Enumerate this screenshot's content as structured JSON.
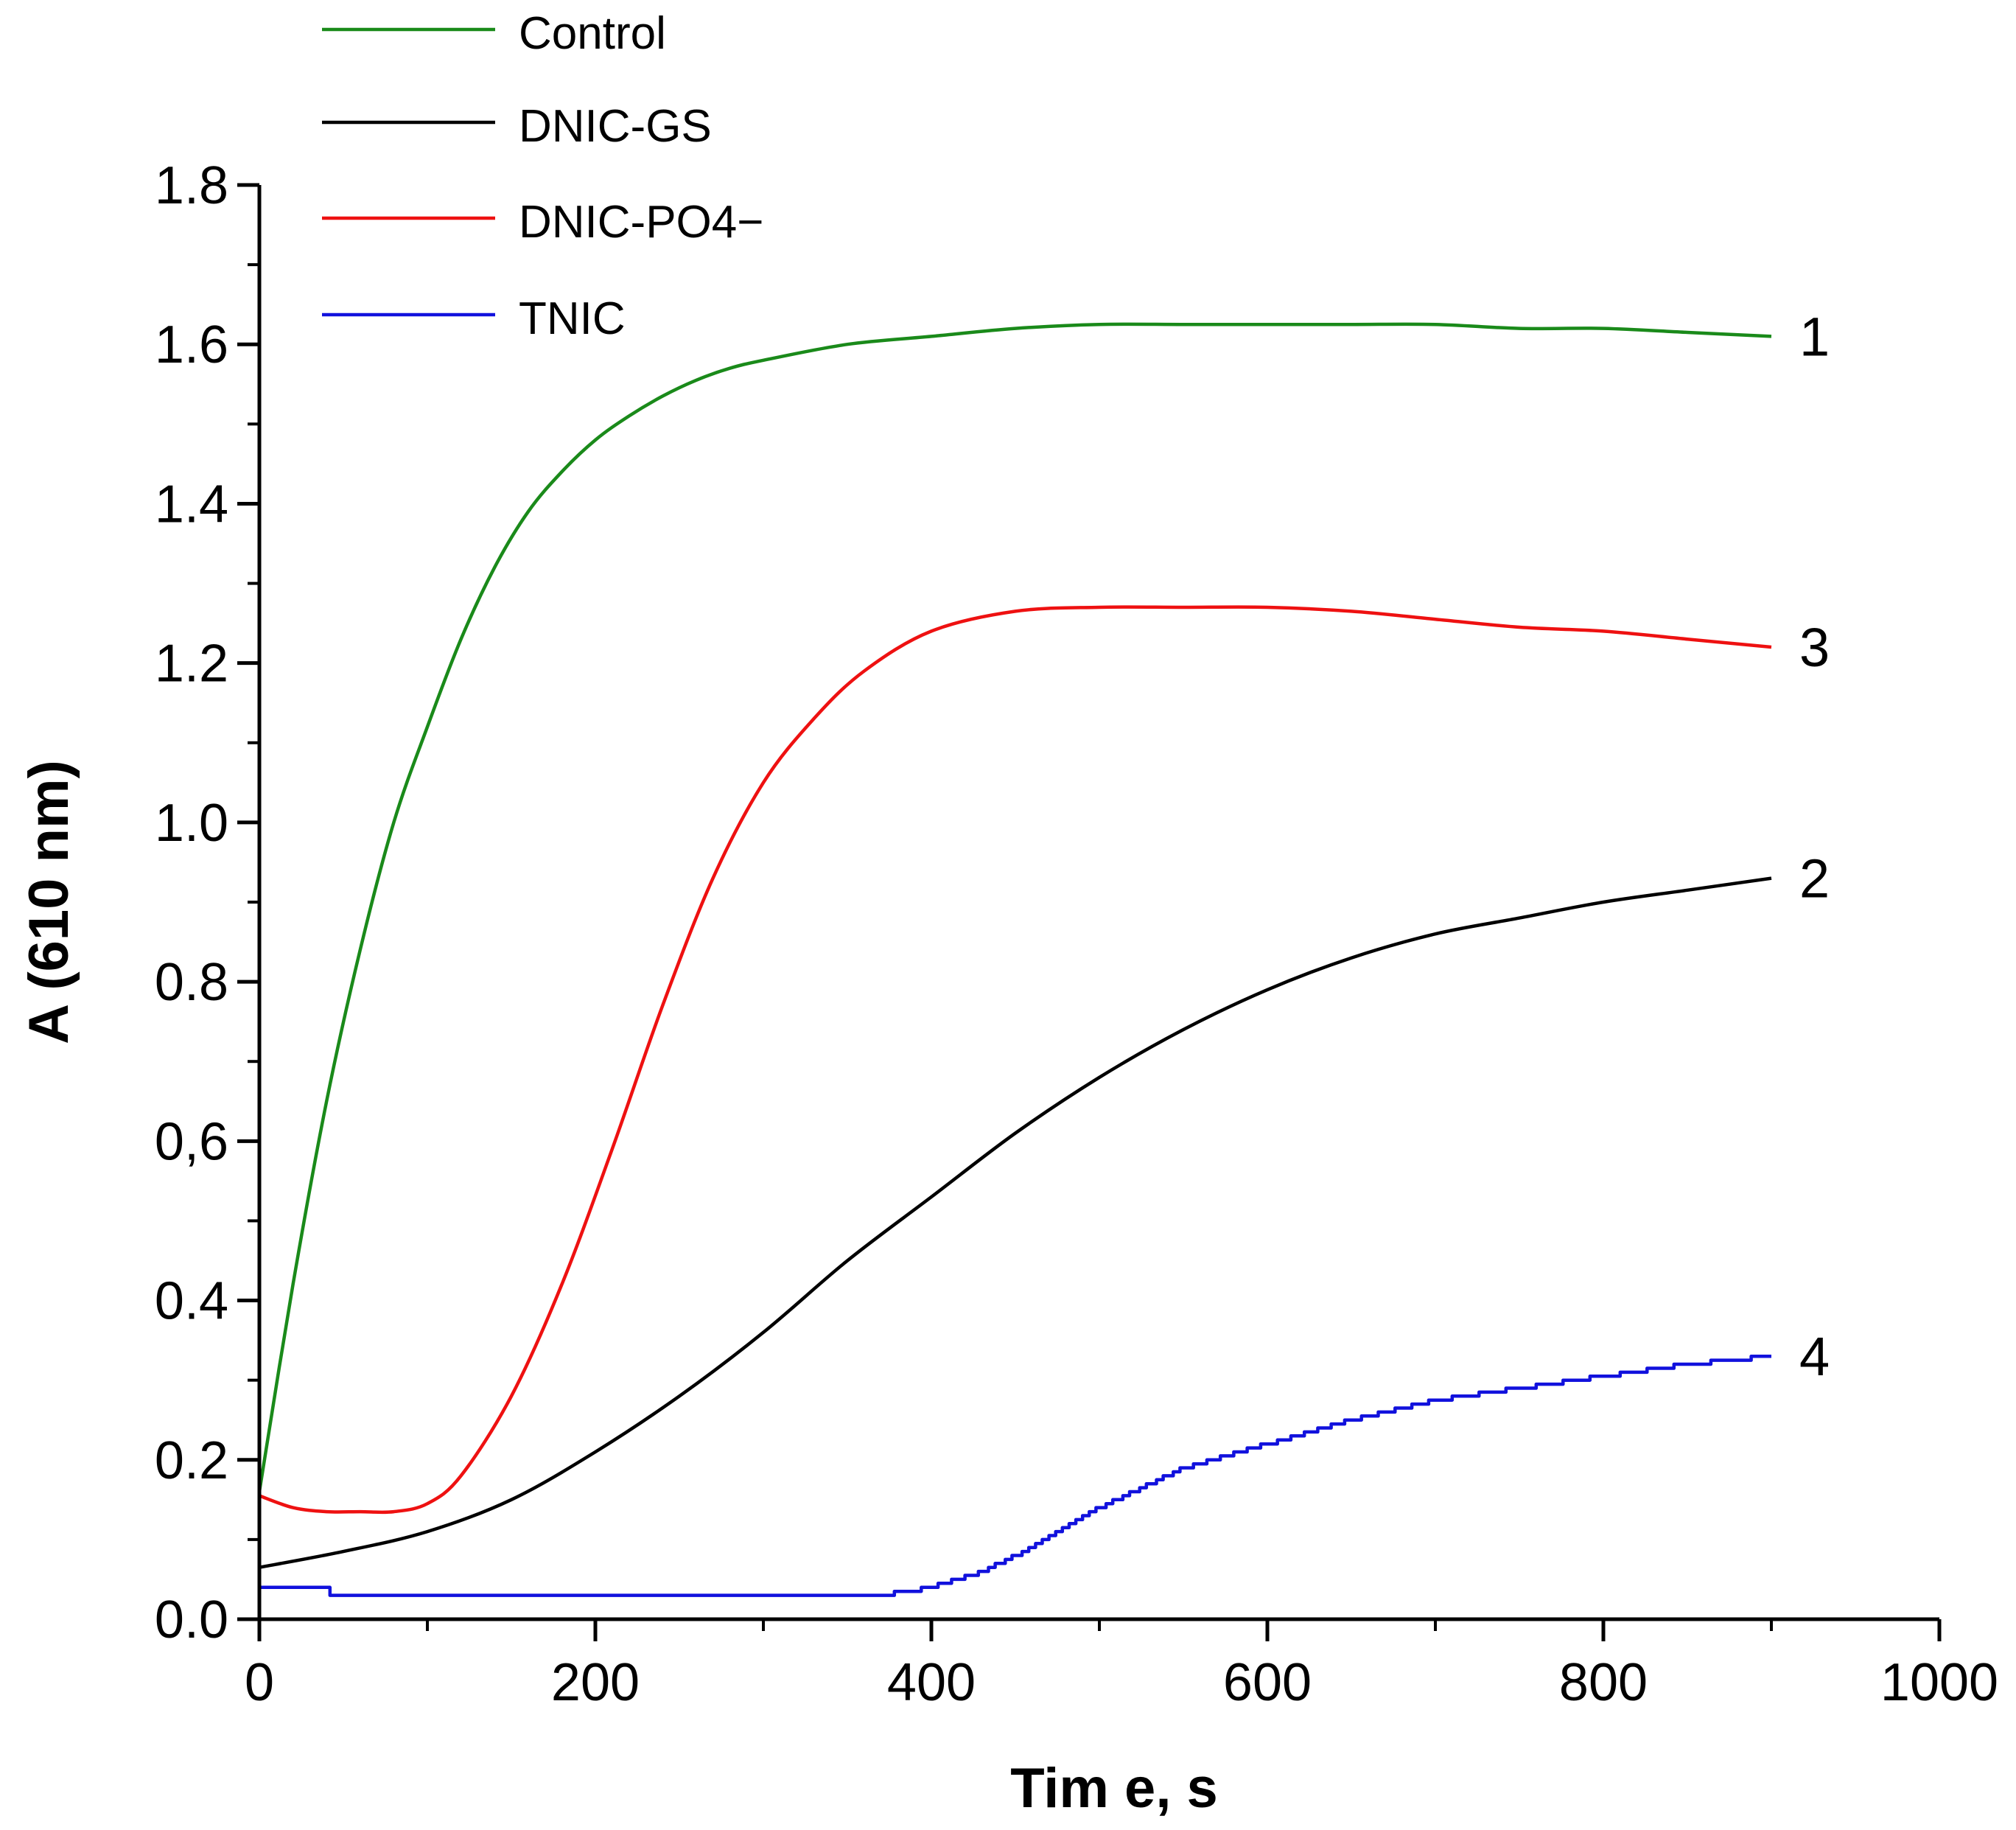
{
  "chart_data": {
    "type": "line",
    "title": "",
    "xlabel": "Tim e, s",
    "ylabel": "A (610 nm)",
    "xlim": [
      0,
      1000
    ],
    "ylim": [
      0,
      1.8
    ],
    "x_ticks": [
      0,
      200,
      400,
      600,
      800,
      1000
    ],
    "x_tick_labels": [
      "0",
      "200",
      "400",
      "600",
      "800",
      "1000"
    ],
    "y_ticks": [
      0,
      0.2,
      0.4,
      0.6,
      0.8,
      1.0,
      1.2,
      1.4,
      1.6,
      1.8
    ],
    "y_tick_labels": [
      "0.0",
      "0.2",
      "0.4",
      "0,6",
      "0.8",
      "1.0",
      "1.2",
      "1.4",
      "1.6",
      "1.8"
    ],
    "grid": false,
    "legend_position": "top-left",
    "series": [
      {
        "name": "Control",
        "curve_label": "1",
        "color": "#1a8a1a",
        "x": [
          0,
          20,
          40,
          60,
          80,
          100,
          120,
          140,
          160,
          180,
          200,
          220,
          240,
          260,
          280,
          300,
          350,
          400,
          450,
          500,
          550,
          600,
          650,
          700,
          750,
          800,
          850,
          900
        ],
        "y": [
          0.16,
          0.42,
          0.65,
          0.84,
          1.0,
          1.12,
          1.23,
          1.32,
          1.39,
          1.44,
          1.48,
          1.51,
          1.535,
          1.555,
          1.57,
          1.58,
          1.6,
          1.61,
          1.62,
          1.625,
          1.625,
          1.625,
          1.625,
          1.625,
          1.62,
          1.62,
          1.615,
          1.61
        ]
      },
      {
        "name": "DNIC-GS",
        "curve_label": "2",
        "color": "#000000",
        "x": [
          0,
          50,
          100,
          150,
          200,
          250,
          300,
          350,
          400,
          450,
          500,
          550,
          600,
          650,
          700,
          750,
          800,
          850,
          900
        ],
        "y": [
          0.065,
          0.085,
          0.11,
          0.15,
          0.21,
          0.28,
          0.36,
          0.45,
          0.53,
          0.61,
          0.68,
          0.74,
          0.79,
          0.83,
          0.86,
          0.88,
          0.9,
          0.915,
          0.93
        ]
      },
      {
        "name": "DNIC-PO4−",
        "curve_label": "3",
        "color": "#ee1111",
        "x": [
          0,
          20,
          40,
          60,
          80,
          100,
          120,
          150,
          180,
          210,
          240,
          270,
          300,
          330,
          360,
          400,
          450,
          500,
          550,
          600,
          650,
          700,
          750,
          800,
          850,
          900
        ],
        "y": [
          0.155,
          0.14,
          0.135,
          0.135,
          0.135,
          0.145,
          0.18,
          0.28,
          0.42,
          0.59,
          0.77,
          0.93,
          1.05,
          1.13,
          1.19,
          1.24,
          1.265,
          1.27,
          1.27,
          1.27,
          1.265,
          1.255,
          1.245,
          1.24,
          1.23,
          1.22
        ]
      },
      {
        "name": "TNIC",
        "curve_label": "4",
        "color": "#1111dd",
        "x": [
          0,
          40,
          42,
          370,
          400,
          430,
          460,
          500,
          550,
          600,
          650,
          700,
          750,
          800,
          850,
          900
        ],
        "y": [
          0.04,
          0.04,
          0.03,
          0.03,
          0.04,
          0.06,
          0.09,
          0.14,
          0.19,
          0.22,
          0.25,
          0.275,
          0.29,
          0.305,
          0.32,
          0.33
        ]
      }
    ]
  }
}
